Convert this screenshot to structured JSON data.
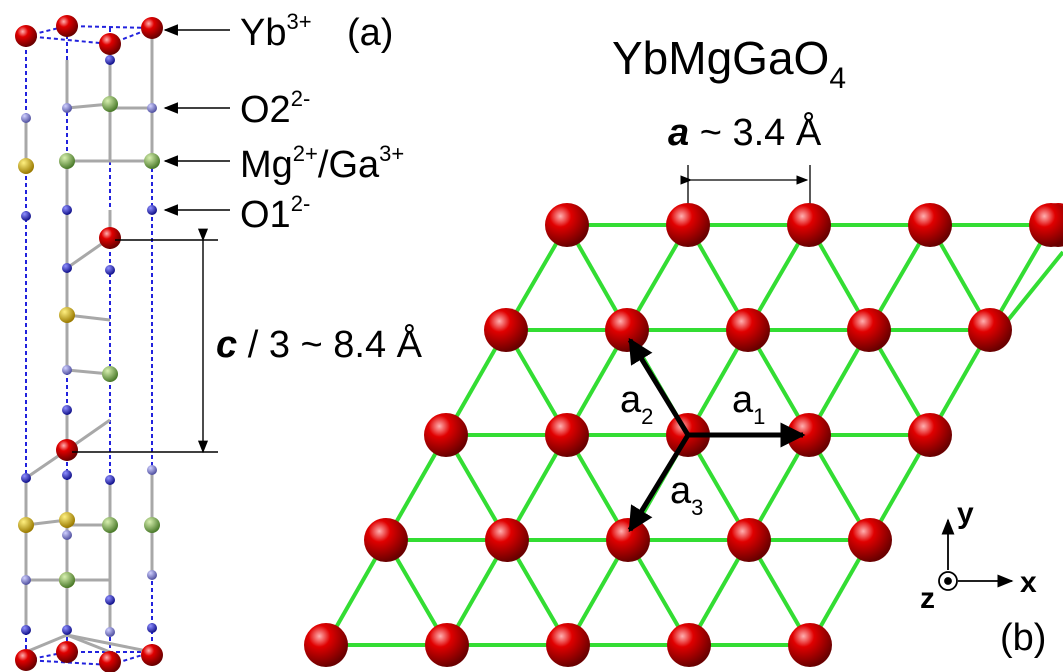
{
  "panel_a": {
    "panel_label": "(a)",
    "species": [
      {
        "base": "Yb",
        "sup": "3+"
      },
      {
        "base": "O2",
        "sup": "2-"
      },
      {
        "base": "Mg",
        "sup": "2+",
        "base2": "/Ga",
        "sup2": "3+"
      },
      {
        "base": "O1",
        "sup": "2-"
      }
    ],
    "spacing": {
      "symbol": "c",
      "text": " / 3 ~ 8.4 Å"
    }
  },
  "panel_b": {
    "title": {
      "base": "YbMgGaO",
      "sub": "4"
    },
    "lattice": {
      "symbol": "a",
      "text": " ~ 3.4 Å"
    },
    "vectors": [
      {
        "base": "a",
        "sub": "1"
      },
      {
        "base": "a",
        "sub": "2"
      },
      {
        "base": "a",
        "sub": "3"
      }
    ],
    "axes": {
      "x": "x",
      "y": "y",
      "z": "z"
    },
    "panel_label": "(b)"
  },
  "colors": {
    "yb": "#e00000",
    "yb_dark": "#7a0000",
    "o": "#1c1cc0",
    "o_light": "#7878c8",
    "mg": "#d4b000",
    "ga": "#78a850",
    "bond_green": "#33dd33",
    "cell_dash": "#2222dd"
  }
}
